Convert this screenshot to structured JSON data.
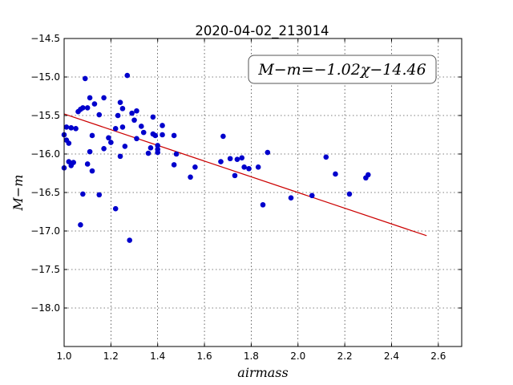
{
  "chart_data": {
    "type": "scatter",
    "title": "2020-04-02_213014",
    "xlabel": "airmass",
    "ylabel": "M−m",
    "xlim": [
      1.0,
      2.7
    ],
    "ylim": [
      -14.5,
      -18.5
    ],
    "y_inverted": true,
    "grid": true,
    "xticks": [
      "1.0",
      "1.2",
      "1.4",
      "1.6",
      "1.8",
      "2.0",
      "2.2",
      "2.4",
      "2.6"
    ],
    "yticks": [
      "−14.5",
      "−15.0",
      "−15.5",
      "−16.0",
      "−16.5",
      "−17.0",
      "−17.5",
      "−18.0"
    ],
    "annotation": "M−m=−1.02χ−14.46",
    "annotation_position": "top-right",
    "fit": {
      "slope": -1.02,
      "intercept": -14.46,
      "x_range": [
        1.0,
        2.55
      ],
      "color": "#cc0000"
    },
    "point_color": "#0000cc",
    "series": [
      {
        "points": [
          [
            1.0,
            -15.75
          ],
          [
            1.0,
            -16.18
          ],
          [
            1.01,
            -15.65
          ],
          [
            1.01,
            -15.82
          ],
          [
            1.02,
            -15.86
          ],
          [
            1.02,
            -16.1
          ],
          [
            1.03,
            -15.66
          ],
          [
            1.03,
            -16.15
          ],
          [
            1.04,
            -16.11
          ],
          [
            1.05,
            -15.67
          ],
          [
            1.06,
            -15.45
          ],
          [
            1.07,
            -16.92
          ],
          [
            1.07,
            -15.42
          ],
          [
            1.08,
            -16.52
          ],
          [
            1.08,
            -15.4
          ],
          [
            1.09,
            -15.02
          ],
          [
            1.1,
            -15.4
          ],
          [
            1.1,
            -16.13
          ],
          [
            1.11,
            -15.97
          ],
          [
            1.11,
            -15.27
          ],
          [
            1.12,
            -15.76
          ],
          [
            1.12,
            -16.22
          ],
          [
            1.13,
            -15.35
          ],
          [
            1.15,
            -15.49
          ],
          [
            1.15,
            -16.53
          ],
          [
            1.17,
            -15.27
          ],
          [
            1.17,
            -15.93
          ],
          [
            1.19,
            -15.79
          ],
          [
            1.2,
            -15.85
          ],
          [
            1.22,
            -16.71
          ],
          [
            1.22,
            -15.67
          ],
          [
            1.23,
            -15.5
          ],
          [
            1.24,
            -15.33
          ],
          [
            1.24,
            -16.03
          ],
          [
            1.25,
            -15.65
          ],
          [
            1.25,
            -15.41
          ],
          [
            1.26,
            -15.9
          ],
          [
            1.27,
            -14.98
          ],
          [
            1.28,
            -17.12
          ],
          [
            1.29,
            -15.47
          ],
          [
            1.3,
            -15.56
          ],
          [
            1.31,
            -15.44
          ],
          [
            1.31,
            -15.8
          ],
          [
            1.33,
            -15.64
          ],
          [
            1.34,
            -15.72
          ],
          [
            1.36,
            -15.99
          ],
          [
            1.37,
            -15.92
          ],
          [
            1.38,
            -15.74
          ],
          [
            1.38,
            -15.52
          ],
          [
            1.39,
            -15.76
          ],
          [
            1.4,
            -15.89
          ],
          [
            1.4,
            -15.98
          ],
          [
            1.4,
            -15.94
          ],
          [
            1.42,
            -15.63
          ],
          [
            1.42,
            -15.75
          ],
          [
            1.47,
            -15.76
          ],
          [
            1.47,
            -16.14
          ],
          [
            1.48,
            -16.0
          ],
          [
            1.54,
            -16.3
          ],
          [
            1.56,
            -16.17
          ],
          [
            1.67,
            -16.1
          ],
          [
            1.68,
            -15.77
          ],
          [
            1.71,
            -16.06
          ],
          [
            1.73,
            -16.28
          ],
          [
            1.74,
            -16.07
          ],
          [
            1.76,
            -16.05
          ],
          [
            1.77,
            -16.17
          ],
          [
            1.79,
            -16.19
          ],
          [
            1.83,
            -16.17
          ],
          [
            1.85,
            -16.66
          ],
          [
            1.87,
            -15.98
          ],
          [
            1.97,
            -16.57
          ],
          [
            2.06,
            -16.54
          ],
          [
            2.12,
            -16.04
          ],
          [
            2.16,
            -16.26
          ],
          [
            2.22,
            -16.52
          ],
          [
            2.29,
            -16.31
          ],
          [
            2.3,
            -16.27
          ]
        ]
      }
    ]
  }
}
